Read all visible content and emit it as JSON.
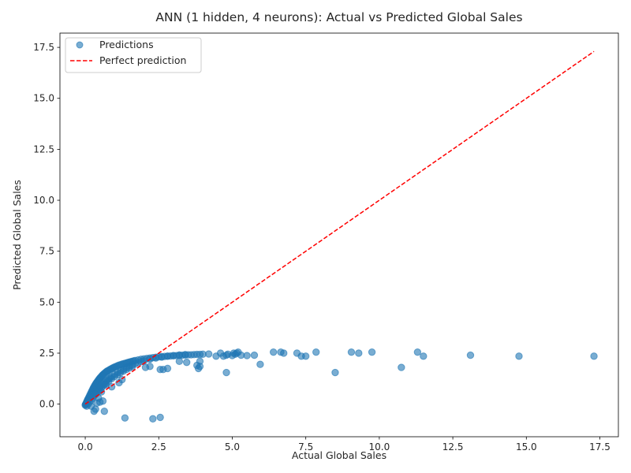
{
  "chart_data": {
    "type": "scatter",
    "title": "ANN (1 hidden, 4 neurons): Actual vs Predicted Global Sales",
    "xlabel": "Actual Global Sales",
    "ylabel": "Predicted Global Sales",
    "xlim": [
      -0.86,
      18.13
    ],
    "ylim": [
      -1.6,
      18.2
    ],
    "xticks": [
      0.0,
      2.5,
      5.0,
      7.5,
      10.0,
      12.5,
      15.0,
      17.5
    ],
    "xtick_labels": [
      "0.0",
      "2.5",
      "5.0",
      "7.5",
      "10.0",
      "12.5",
      "15.0",
      "17.5"
    ],
    "yticks": [
      0.0,
      2.5,
      5.0,
      7.5,
      10.0,
      12.5,
      15.0,
      17.5
    ],
    "ytick_labels": [
      "0.0",
      "2.5",
      "5.0",
      "7.5",
      "10.0",
      "12.5",
      "15.0",
      "17.5"
    ],
    "grid": false,
    "legend_position": "top-left",
    "series": [
      {
        "name": "Predictions",
        "kind": "scatter",
        "color": "#1f77b4",
        "opacity": 0.6,
        "x": [
          0.0,
          0.01,
          0.02,
          0.03,
          0.04,
          0.05,
          0.06,
          0.07,
          0.08,
          0.09,
          0.1,
          0.12,
          0.14,
          0.16,
          0.18,
          0.2,
          0.22,
          0.24,
          0.26,
          0.28,
          0.3,
          0.32,
          0.34,
          0.36,
          0.38,
          0.4,
          0.42,
          0.44,
          0.46,
          0.48,
          0.5,
          0.52,
          0.55,
          0.58,
          0.6,
          0.63,
          0.66,
          0.7,
          0.73,
          0.76,
          0.8,
          0.84,
          0.88,
          0.92,
          0.96,
          1.0,
          1.05,
          1.1,
          1.15,
          1.2,
          1.25,
          1.3,
          1.35,
          1.4,
          1.45,
          1.5,
          1.55,
          1.6,
          1.65,
          1.7,
          1.8,
          1.9,
          2.0,
          2.1,
          2.2,
          2.3,
          2.4,
          2.5,
          2.6,
          2.7,
          2.8,
          2.9,
          3.0,
          3.1,
          3.2,
          3.3,
          3.4,
          3.5,
          3.6,
          3.7,
          3.8,
          3.9,
          4.0,
          4.2,
          0.1,
          0.15,
          0.2,
          0.25,
          0.3,
          0.35,
          0.4,
          0.45,
          0.5,
          0.55,
          0.6,
          0.65,
          0.7,
          0.75,
          0.8,
          0.85,
          0.9,
          1.0,
          1.1,
          1.2,
          1.3,
          1.4,
          1.5,
          1.6,
          1.7,
          1.8,
          1.9,
          2.0,
          2.2,
          2.4,
          2.6,
          2.8,
          3.0,
          3.2,
          3.4,
          0.05,
          0.1,
          0.15,
          0.2,
          0.25,
          0.3,
          0.35,
          0.4,
          0.45,
          0.5,
          0.55,
          0.6,
          0.65,
          0.7,
          0.8,
          0.9,
          1.0,
          1.1,
          1.2,
          1.3,
          1.4,
          1.5,
          1.6,
          0.3,
          0.35,
          0.4,
          0.5,
          0.6,
          0.65,
          1.35,
          2.3,
          2.55,
          0.2,
          0.45,
          0.55,
          0.7,
          0.9,
          1.15,
          1.25,
          2.05,
          2.2,
          2.55,
          2.65,
          2.8,
          3.2,
          3.45,
          3.8,
          3.85,
          3.9,
          3.9,
          4.45,
          4.6,
          4.7,
          4.8,
          4.85,
          5.0,
          5.05,
          5.1,
          5.15,
          5.2,
          5.3,
          5.5,
          5.75,
          6.4,
          6.65,
          6.75,
          7.2,
          7.35,
          7.5,
          7.85,
          9.05,
          9.3,
          9.75,
          11.3,
          11.5,
          13.1,
          14.75,
          17.3,
          4.8,
          5.95,
          8.5,
          10.75
        ],
        "y": [
          -0.05,
          -0.02,
          0.0,
          0.03,
          0.06,
          0.1,
          0.13,
          0.16,
          0.2,
          0.23,
          0.26,
          0.32,
          0.38,
          0.44,
          0.5,
          0.56,
          0.62,
          0.68,
          0.74,
          0.8,
          0.85,
          0.9,
          0.95,
          1.0,
          1.04,
          1.08,
          1.12,
          1.16,
          1.2,
          1.24,
          1.28,
          1.31,
          1.36,
          1.41,
          1.44,
          1.48,
          1.52,
          1.57,
          1.6,
          1.63,
          1.66,
          1.7,
          1.73,
          1.76,
          1.79,
          1.82,
          1.85,
          1.88,
          1.91,
          1.93,
          1.96,
          1.98,
          2.0,
          2.02,
          2.04,
          2.06,
          2.08,
          2.1,
          2.12,
          2.14,
          2.17,
          2.2,
          2.22,
          2.24,
          2.26,
          2.28,
          2.3,
          2.32,
          2.33,
          2.34,
          2.35,
          2.36,
          2.37,
          2.38,
          2.39,
          2.4,
          2.41,
          2.42,
          2.42,
          2.43,
          2.44,
          2.44,
          2.45,
          2.46,
          0.15,
          0.26,
          0.36,
          0.45,
          0.54,
          0.62,
          0.7,
          0.78,
          0.86,
          0.93,
          1.0,
          1.06,
          1.12,
          1.18,
          1.24,
          1.3,
          1.35,
          1.45,
          1.55,
          1.64,
          1.72,
          1.8,
          1.86,
          1.92,
          1.98,
          2.03,
          2.08,
          2.12,
          2.2,
          2.26,
          2.31,
          2.35,
          2.38,
          2.41,
          2.43,
          -0.1,
          0.0,
          0.1,
          0.2,
          0.3,
          0.4,
          0.48,
          0.56,
          0.64,
          0.72,
          0.8,
          0.88,
          0.96,
          1.02,
          1.14,
          1.25,
          1.35,
          1.45,
          1.54,
          1.62,
          1.7,
          1.77,
          1.84,
          -0.35,
          -0.25,
          0.05,
          0.1,
          0.15,
          -0.35,
          -0.68,
          -0.72,
          -0.65,
          -0.1,
          0.3,
          0.6,
          0.95,
          0.85,
          1.05,
          1.2,
          1.8,
          1.85,
          1.7,
          1.7,
          1.75,
          2.1,
          2.05,
          1.9,
          1.75,
          1.85,
          2.1,
          2.35,
          2.5,
          2.35,
          2.4,
          2.45,
          2.38,
          2.5,
          2.45,
          2.5,
          2.55,
          2.4,
          2.38,
          2.4,
          2.55,
          2.55,
          2.5,
          2.5,
          2.35,
          2.35,
          2.55,
          2.55,
          2.5,
          2.55,
          2.55,
          2.35,
          2.4,
          2.35,
          2.35,
          1.55,
          1.95,
          1.55,
          1.8
        ]
      },
      {
        "name": "Perfect prediction",
        "kind": "line",
        "color": "#ff0000",
        "dash": "dashed",
        "x": [
          0.0,
          17.3
        ],
        "y": [
          0.0,
          17.3
        ]
      }
    ]
  }
}
